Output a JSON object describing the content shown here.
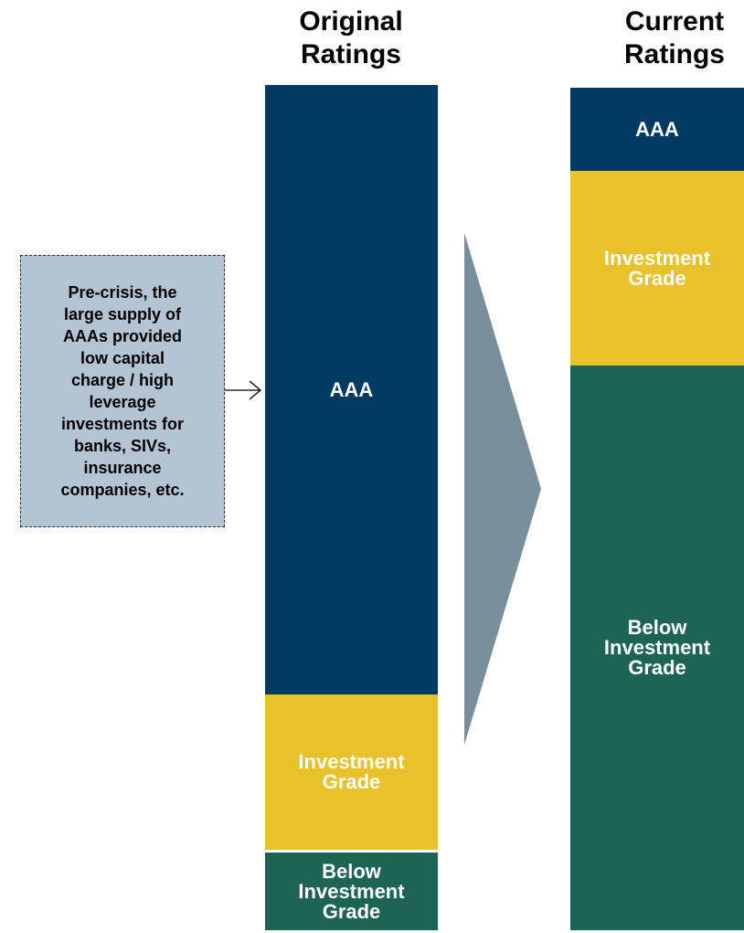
{
  "columns": [
    {
      "title": [
        "Original",
        "Ratings"
      ],
      "segments": [
        {
          "label": [
            "AAA"
          ]
        },
        {
          "label": [
            "Investment",
            "Grade"
          ]
        },
        {
          "label": [
            "Below",
            "Investment",
            "Grade"
          ]
        }
      ]
    },
    {
      "title": [
        "Current",
        "Ratings"
      ],
      "segments": [
        {
          "label": [
            "AAA"
          ]
        },
        {
          "label": [
            "Investment",
            "Grade"
          ]
        },
        {
          "label": [
            "Below",
            "Investment",
            "Grade"
          ]
        }
      ]
    }
  ],
  "callout": {
    "lines": [
      "Pre-crisis, the",
      "large supply of",
      "AAAs provided",
      "low capital",
      "charge / high",
      "leverage",
      "investments for",
      "banks, SIVs,",
      "insurance",
      "companies, etc."
    ]
  }
}
